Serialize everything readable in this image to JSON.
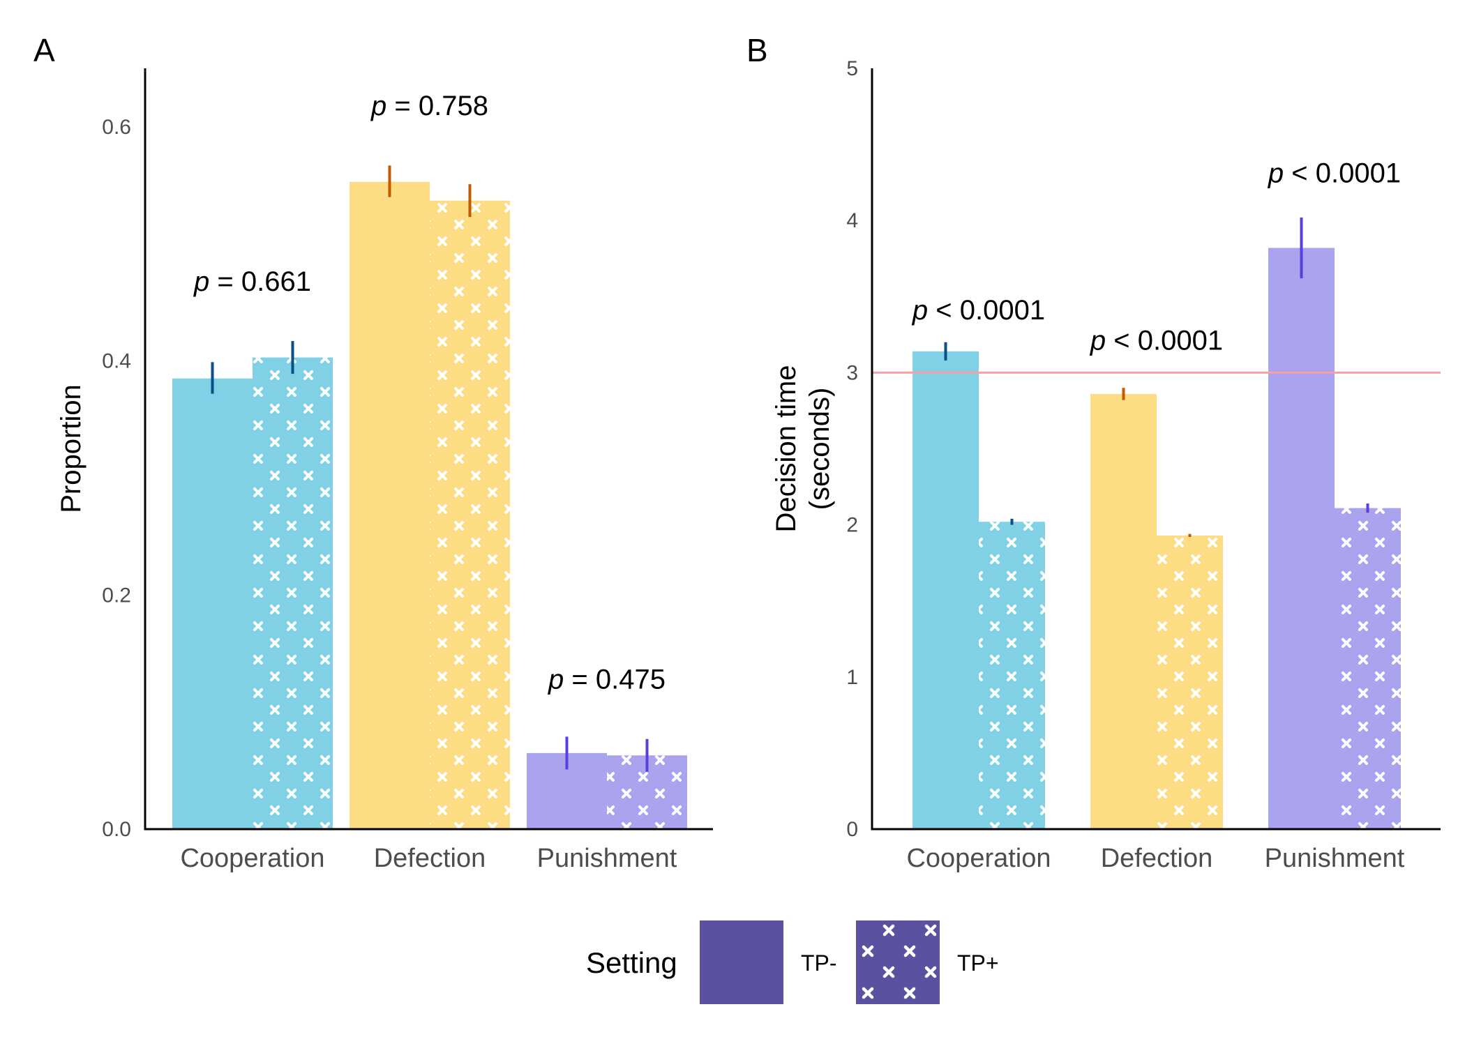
{
  "legend": {
    "title": "Setting",
    "items": [
      {
        "label": "TP-",
        "pattern": "none"
      },
      {
        "label": "TP+",
        "pattern": "crosses"
      }
    ],
    "swatch_color": "#5a52a0"
  },
  "colors": {
    "Cooperation": "#80d0e6",
    "Defection": "#fddd84",
    "Punishment": "#aaa3ee",
    "err_Cooperation": "#0b4f88",
    "err_Defection": "#c45a00",
    "err_Punishment": "#5a3ee0",
    "reference_line": "#f4a0a8"
  },
  "chart_data": [
    {
      "panel": "A",
      "type": "bar",
      "categories": [
        "Cooperation",
        "Defection",
        "Punishment"
      ],
      "series": [
        {
          "name": "TP-",
          "values": [
            0.385,
            0.553,
            0.065
          ],
          "err_low": [
            0.372,
            0.54,
            0.051
          ],
          "err_high": [
            0.399,
            0.567,
            0.079
          ]
        },
        {
          "name": "TP+",
          "values": [
            0.403,
            0.537,
            0.063
          ],
          "err_low": [
            0.389,
            0.523,
            0.049
          ],
          "err_high": [
            0.417,
            0.551,
            0.077
          ]
        }
      ],
      "ylabel": "Proportion",
      "ylim": [
        0,
        0.65
      ],
      "yticks": [
        0.0,
        0.2,
        0.4,
        0.6
      ],
      "ytick_labels": [
        "0.0",
        "0.2",
        "0.4",
        "0.6"
      ],
      "annotations": [
        {
          "category": "Cooperation",
          "y": 0.46,
          "italic": "p",
          "rest": " = 0.661"
        },
        {
          "category": "Defection",
          "y": 0.61,
          "italic": "p",
          "rest": " = 0.758"
        },
        {
          "category": "Punishment",
          "y": 0.12,
          "italic": "p",
          "rest": " = 0.475"
        }
      ]
    },
    {
      "panel": "B",
      "type": "bar",
      "categories": [
        "Cooperation",
        "Defection",
        "Punishment"
      ],
      "series": [
        {
          "name": "TP-",
          "values": [
            3.14,
            2.86,
            3.82
          ],
          "err_low": [
            3.08,
            2.82,
            3.62
          ],
          "err_high": [
            3.2,
            2.9,
            4.02
          ]
        },
        {
          "name": "TP+",
          "values": [
            2.02,
            1.93,
            2.11
          ],
          "err_low": [
            2.0,
            1.92,
            2.08
          ],
          "err_high": [
            2.04,
            1.94,
            2.14
          ]
        }
      ],
      "ylabel_lines": [
        "Decision time",
        "(seconds)"
      ],
      "ylim": [
        0,
        5
      ],
      "yticks": [
        0,
        1,
        2,
        3,
        4,
        5
      ],
      "ytick_labels": [
        "0",
        "1",
        "2",
        "3",
        "4",
        "5"
      ],
      "reference_line": 3,
      "annotations": [
        {
          "category": "Cooperation",
          "y": 3.35,
          "italic": "p",
          "rest": " < 0.0001"
        },
        {
          "category": "Defection",
          "y": 3.15,
          "italic": "p",
          "rest": " < 0.0001"
        },
        {
          "category": "Punishment",
          "y": 4.25,
          "italic": "p",
          "rest": " < 0.0001"
        }
      ]
    }
  ]
}
